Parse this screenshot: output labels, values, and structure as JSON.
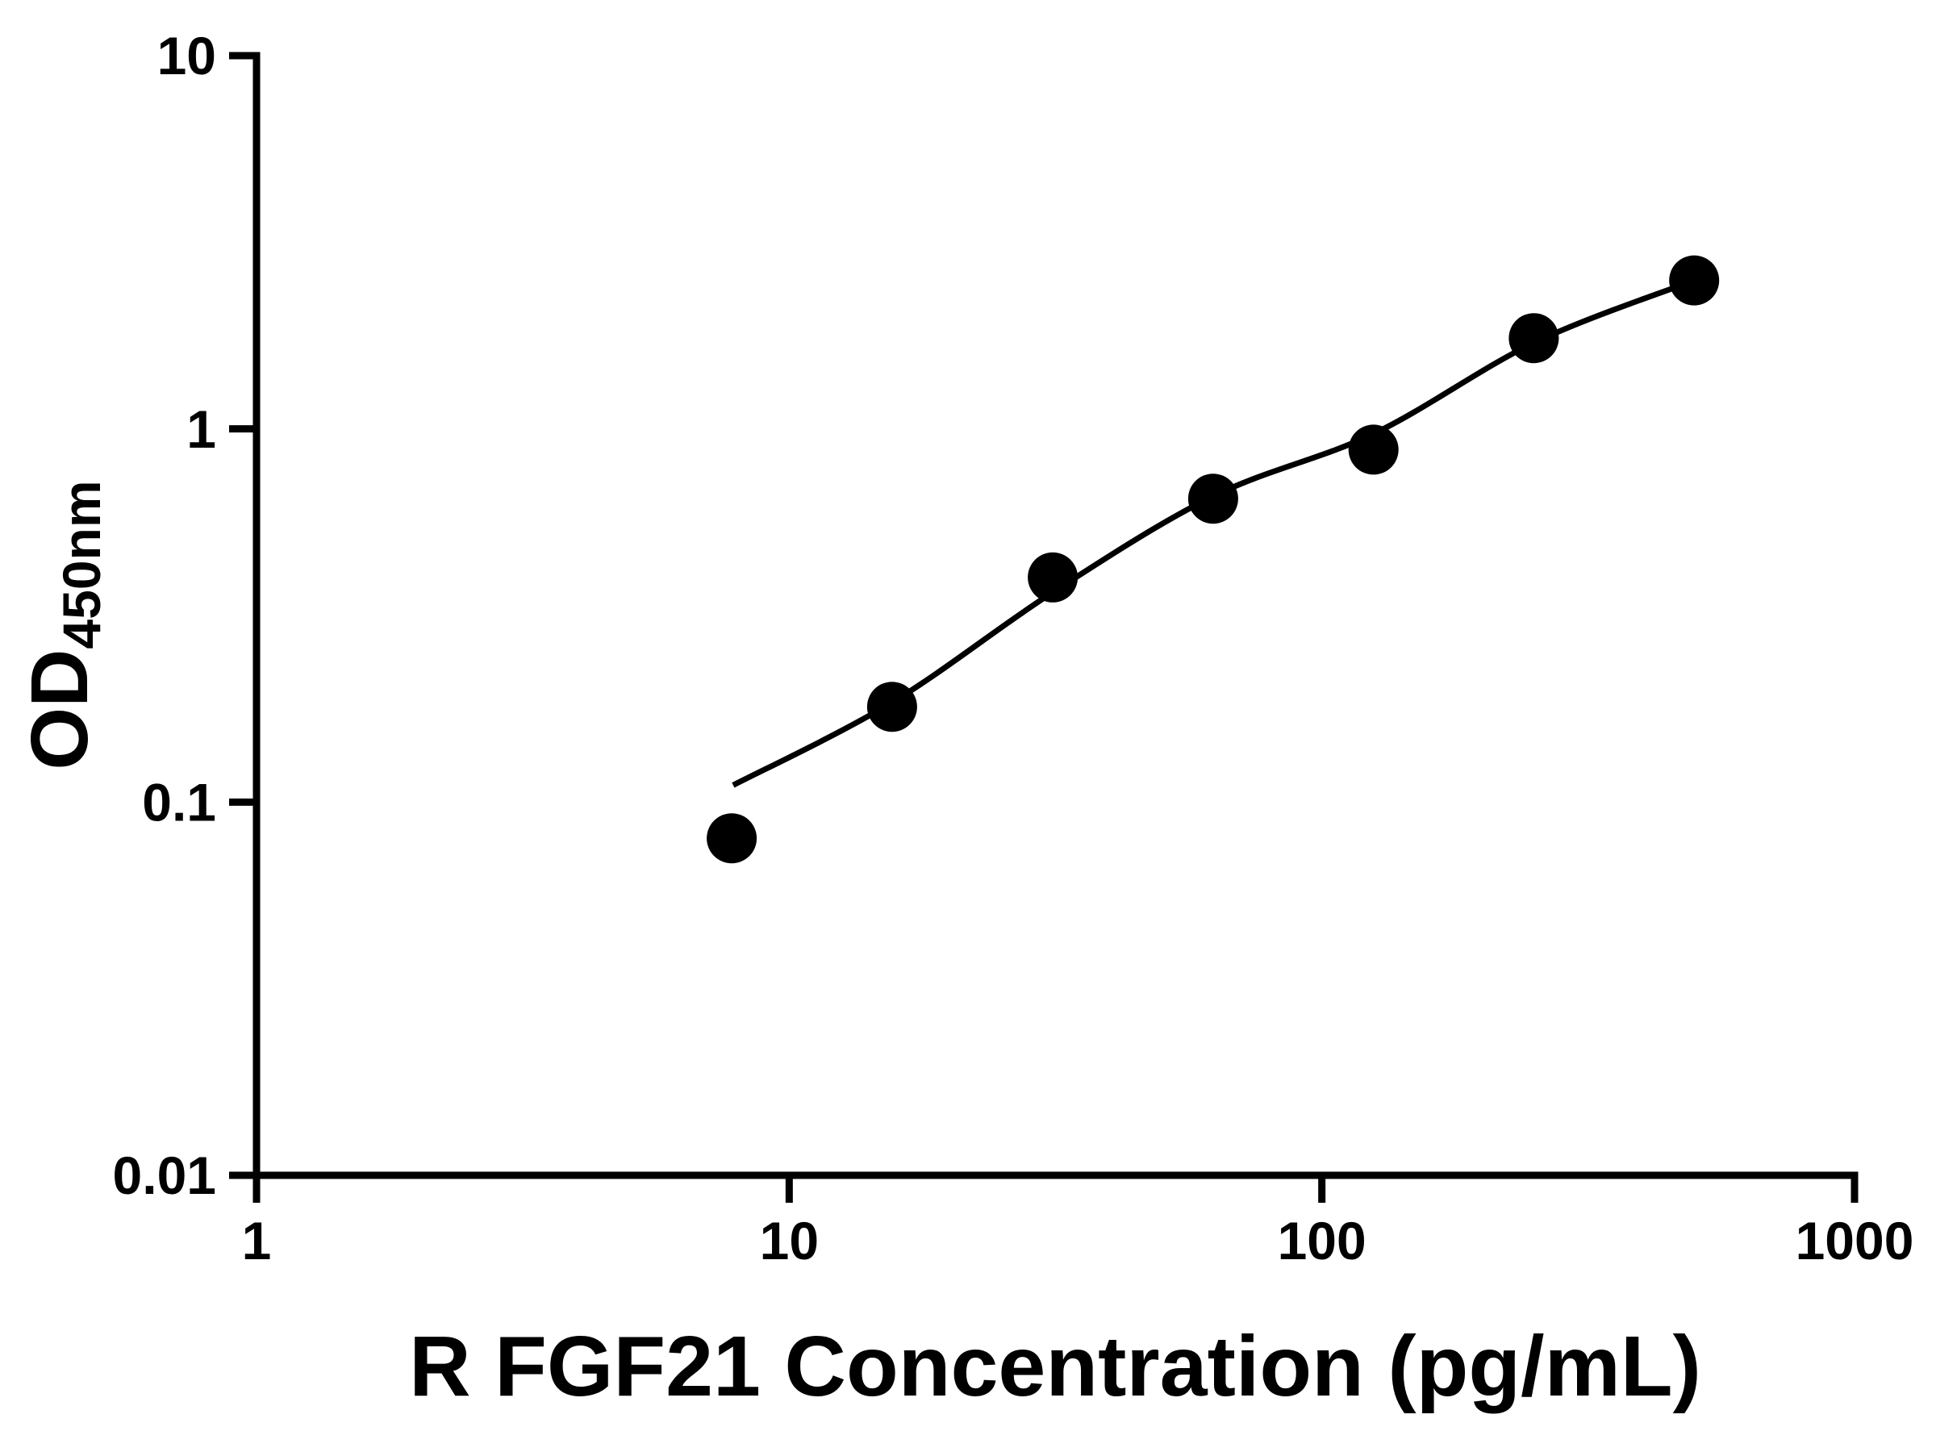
{
  "chart_data": {
    "type": "scatter",
    "title": "",
    "xlabel": "R FGF21 Concentration (pg/mL)",
    "ylabel_main": "OD",
    "ylabel_sub": "450nm",
    "x_scale": "log",
    "y_scale": "log",
    "xlim": [
      1,
      1000
    ],
    "ylim": [
      0.01,
      10
    ],
    "x_ticks": [
      1,
      10,
      100,
      1000
    ],
    "x_tick_labels": [
      "1",
      "10",
      "100",
      "1000"
    ],
    "y_ticks": [
      0.01,
      0.1,
      1,
      10
    ],
    "y_tick_labels": [
      "0.01",
      "0.1",
      "1",
      "10"
    ],
    "grid": false,
    "legend": "none",
    "series": [
      {
        "name": "standard-curve-points",
        "x": [
          7.8,
          15.6,
          31.25,
          62.5,
          125,
          250,
          500
        ],
        "y": [
          0.08,
          0.18,
          0.4,
          0.65,
          0.88,
          1.75,
          2.5
        ]
      }
    ],
    "fit_curve": {
      "x": [
        7.85,
        15.6,
        31.25,
        62.5,
        125,
        250,
        500
      ],
      "y": [
        0.111,
        0.185,
        0.365,
        0.66,
        0.97,
        1.7,
        2.5
      ]
    },
    "colors": {
      "points": "#000000",
      "line": "#000000",
      "axis": "#000000",
      "background": "#ffffff"
    }
  }
}
